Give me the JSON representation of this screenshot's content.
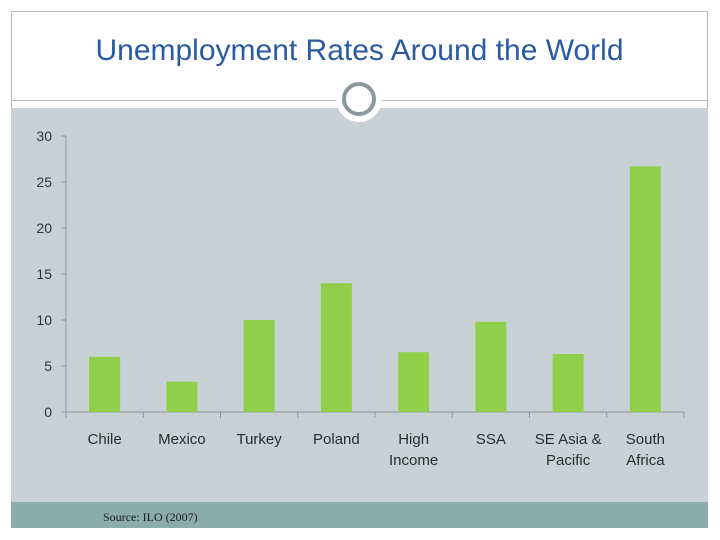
{
  "slide": {
    "title": "Unemployment Rates Around the World",
    "source": "Source: ILO (2007)"
  },
  "colors": {
    "title": "#2a5aa2",
    "bar": "#8fcf4a",
    "plot_background": "#c8d2d6",
    "footer_band": "#8aacac"
  },
  "chart_data": {
    "type": "bar",
    "categories": [
      [
        "Chile"
      ],
      [
        "Mexico"
      ],
      [
        "Turkey"
      ],
      [
        "Poland"
      ],
      [
        "High",
        "Income"
      ],
      [
        "SSA"
      ],
      [
        "SE Asia &",
        "Pacific"
      ],
      [
        "South",
        "Africa"
      ]
    ],
    "values": [
      6.0,
      3.3,
      10.0,
      14.0,
      6.5,
      9.8,
      6.3,
      26.7
    ],
    "yticks": [
      0,
      5,
      10,
      15,
      20,
      25,
      30
    ],
    "ylim": [
      0,
      30
    ],
    "title": "",
    "xlabel": "",
    "ylabel": "",
    "grid": false,
    "legend": "none"
  }
}
